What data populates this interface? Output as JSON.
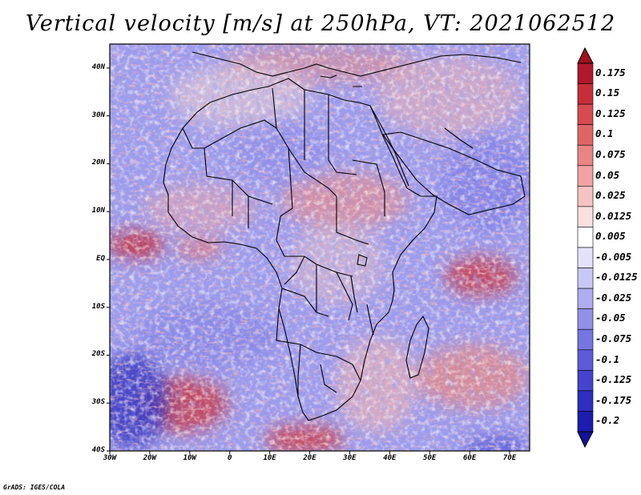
{
  "title": "Vertical velocity [m/s] at 250hPa, VT: 2021062512",
  "footer": "GrADS: IGES/COLA",
  "map": {
    "region": "Africa",
    "lon_range": [
      -30,
      75
    ],
    "lat_range": [
      -40,
      45
    ],
    "lat_ticks": [
      {
        "lat": 40,
        "label": "40N"
      },
      {
        "lat": 30,
        "label": "30N"
      },
      {
        "lat": 20,
        "label": "20N"
      },
      {
        "lat": 10,
        "label": "10N"
      },
      {
        "lat": 0,
        "label": "EQ"
      },
      {
        "lat": -10,
        "label": "10S"
      },
      {
        "lat": -20,
        "label": "20S"
      },
      {
        "lat": -30,
        "label": "30S"
      },
      {
        "lat": -40,
        "label": "40S"
      }
    ],
    "lon_ticks": [
      {
        "lon": -30,
        "label": "30W"
      },
      {
        "lon": -20,
        "label": "20W"
      },
      {
        "lon": -10,
        "label": "10W"
      },
      {
        "lon": 0,
        "label": "0"
      },
      {
        "lon": 10,
        "label": "10E"
      },
      {
        "lon": 20,
        "label": "20E"
      },
      {
        "lon": 30,
        "label": "30E"
      },
      {
        "lon": 40,
        "label": "40E"
      },
      {
        "lon": 50,
        "label": "50E"
      },
      {
        "lon": 60,
        "label": "60E"
      },
      {
        "lon": 70,
        "label": "70E"
      }
    ],
    "colors": {
      "strong_up": "#b22222",
      "up": "#e07a7a",
      "weak": "#f4eef4",
      "down": "#8f8fe8",
      "strong_down": "#2a2ab8",
      "border": "#000000"
    }
  },
  "colorbar": {
    "levels": [
      {
        "label": "0.175",
        "color": "#b2182b"
      },
      {
        "label": "0.15",
        "color": "#c62f3a"
      },
      {
        "label": "0.125",
        "color": "#d64a50"
      },
      {
        "label": "0.1",
        "color": "#e06666"
      },
      {
        "label": "0.075",
        "color": "#e98585"
      },
      {
        "label": "0.05",
        "color": "#f0a3a3"
      },
      {
        "label": "0.025",
        "color": "#f6c3c3"
      },
      {
        "label": "0.0125",
        "color": "#fae0e0"
      },
      {
        "label": "0.005",
        "color": "#ffffff"
      },
      {
        "label": "-0.005",
        "color": "#e2e2fb"
      },
      {
        "label": "-0.0125",
        "color": "#c8c8f6"
      },
      {
        "label": "-0.025",
        "color": "#adadf0"
      },
      {
        "label": "-0.05",
        "color": "#9191ea"
      },
      {
        "label": "-0.075",
        "color": "#7676e2"
      },
      {
        "label": "-0.1",
        "color": "#5b5bd9"
      },
      {
        "label": "-0.125",
        "color": "#4444ce"
      },
      {
        "label": "-0.175",
        "color": "#2e2ec0"
      },
      {
        "label": "-0.2",
        "color": "#1c1cb0"
      }
    ],
    "top_arrow_color": "#a3101e",
    "bottom_arrow_color": "#12129a"
  }
}
